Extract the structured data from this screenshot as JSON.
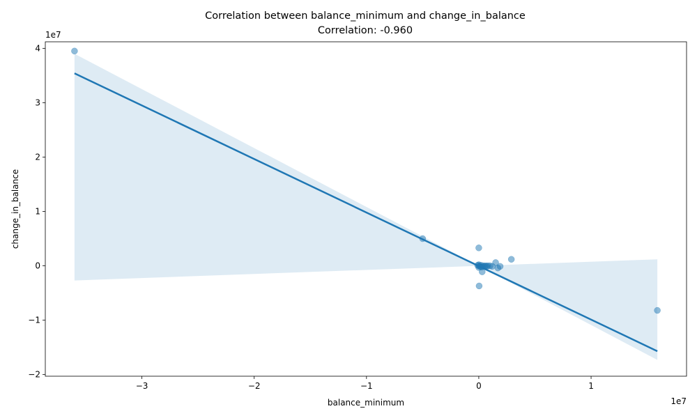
{
  "chart_data": {
    "type": "scatter",
    "title": "Correlation between balance_minimum and change_in_balance",
    "subtitle": "Correlation: -0.960",
    "xlabel": "balance_minimum",
    "ylabel": "change_in_balance",
    "x_offset_label": "1e7",
    "y_offset_label": "1e7",
    "xlim": [
      -3.86,
      1.85
    ],
    "ylim": [
      -2.03,
      4.12
    ],
    "x_ticks": [
      -3,
      -2,
      -1,
      0,
      1
    ],
    "x_tick_labels": [
      "−3",
      "−2",
      "−1",
      "0",
      "1"
    ],
    "y_ticks": [
      -2,
      -1,
      0,
      1,
      2,
      3,
      4
    ],
    "y_tick_labels": [
      "−2",
      "−1",
      "0",
      "1",
      "2",
      "3",
      "4"
    ],
    "grid": false,
    "colors": {
      "points": "#1f77b4",
      "line": "#1f77b4",
      "band": "#1f77b4"
    },
    "points": [
      {
        "x": -3.6,
        "y": 3.95
      },
      {
        "x": -0.5,
        "y": 0.5
      },
      {
        "x": 0.0,
        "y": 0.33
      },
      {
        "x": 0.29,
        "y": 0.12
      },
      {
        "x": 0.15,
        "y": 0.06
      },
      {
        "x": 0.19,
        "y": -0.01
      },
      {
        "x": 0.17,
        "y": -0.04
      },
      {
        "x": 0.003,
        "y": -0.37
      },
      {
        "x": 0.03,
        "y": -0.11
      },
      {
        "x": 1.59,
        "y": -0.82
      },
      {
        "x": 0.0,
        "y": 0.02
      },
      {
        "x": 0.0,
        "y": 0.0
      },
      {
        "x": 0.01,
        "y": -0.01
      },
      {
        "x": 0.02,
        "y": 0.01
      },
      {
        "x": 0.03,
        "y": -0.02
      },
      {
        "x": 0.04,
        "y": 0.0
      },
      {
        "x": 0.05,
        "y": -0.01
      },
      {
        "x": 0.06,
        "y": 0.0
      },
      {
        "x": 0.07,
        "y": -0.01
      },
      {
        "x": 0.08,
        "y": 0.0
      },
      {
        "x": 0.1,
        "y": 0.0
      },
      {
        "x": 0.12,
        "y": -0.01
      },
      {
        "x": -0.01,
        "y": 0.01
      },
      {
        "x": 0.0,
        "y": -0.03
      },
      {
        "x": 0.02,
        "y": -0.02
      }
    ],
    "regression": {
      "x": [
        -3.6,
        1.59
      ],
      "y": [
        3.54,
        -1.57
      ],
      "ci_upper": [
        3.9,
        0.12
      ],
      "ci_lower": [
        -0.27,
        -1.73
      ],
      "ci_center_x": 0.0,
      "ci_center_y": 0.0
    }
  }
}
